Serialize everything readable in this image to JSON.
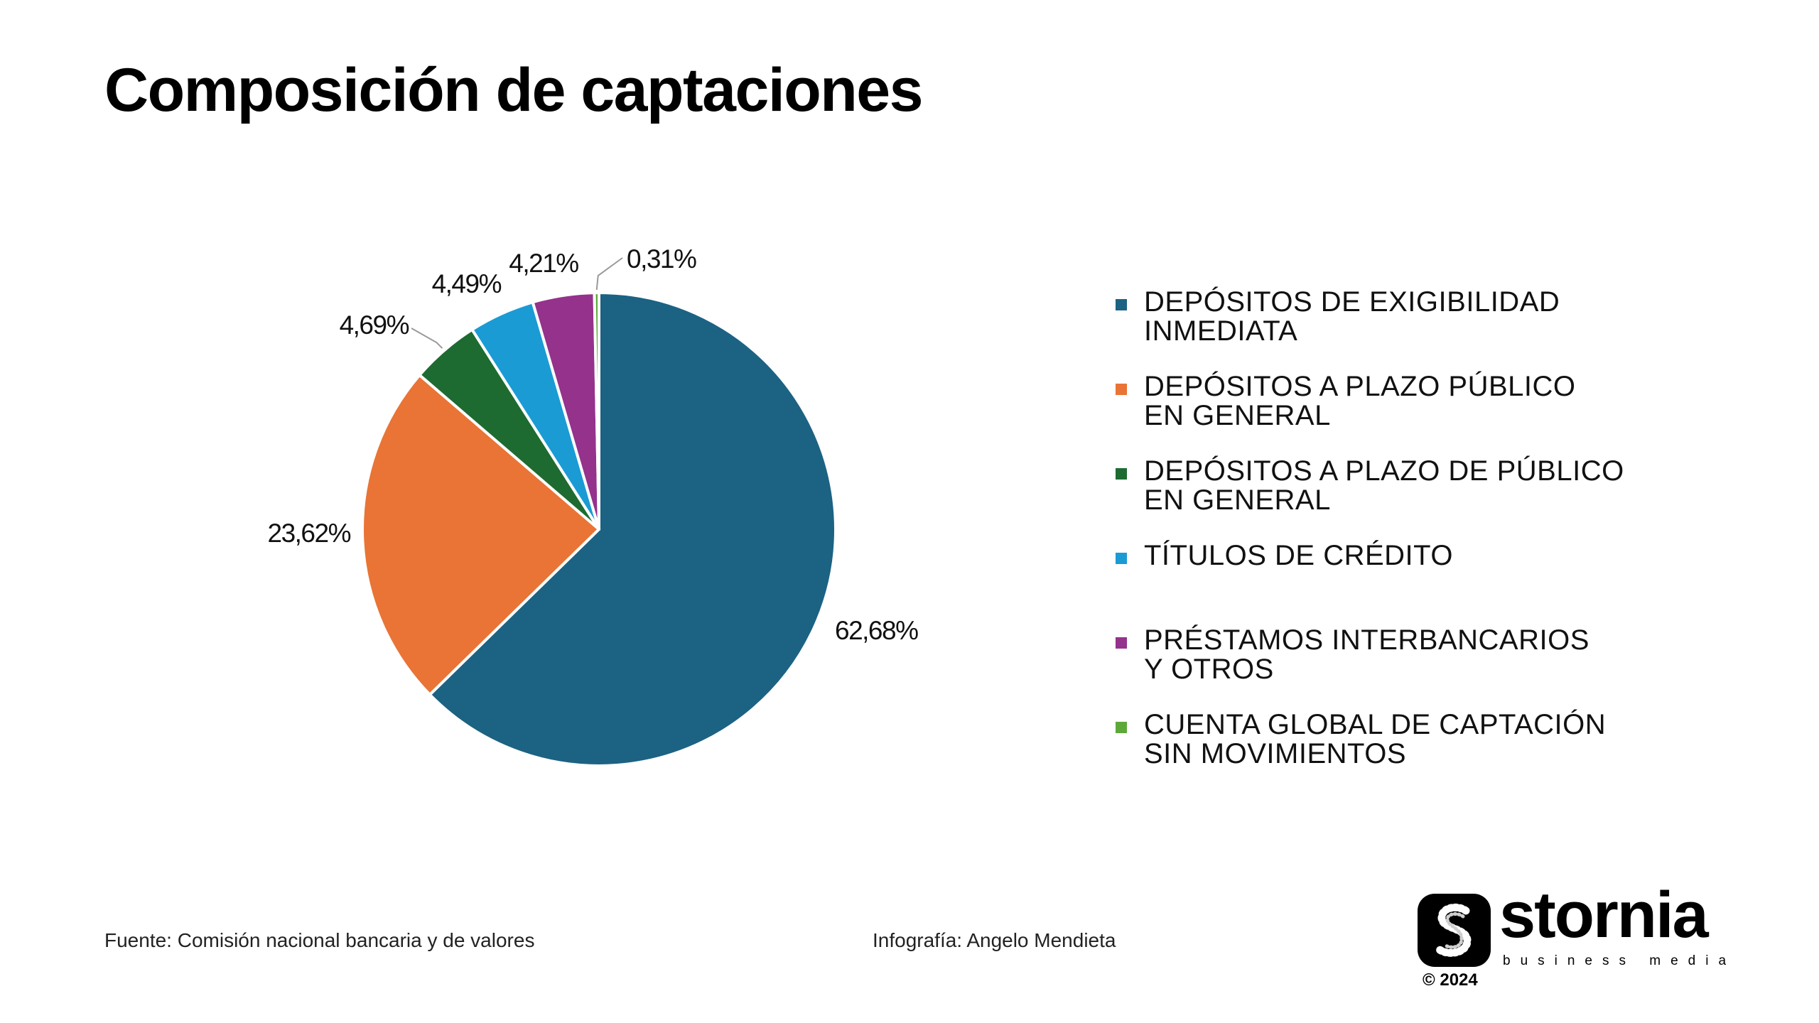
{
  "title": "Composición de captaciones",
  "chart_data": {
    "type": "pie",
    "title": "Composición de captaciones",
    "categories": [
      "DEPÓSITOS DE EXIGIBILIDAD INMEDIATA",
      "DEPÓSITOS A PLAZO PÚBLICO EN GENERAL",
      "DEPÓSITOS A PLAZO DE PÚBLICO EN GENERAL",
      "TÍTULOS DE CRÉDITO",
      "PRÉSTAMOS INTERBANCARIOS Y OTROS",
      "CUENTA GLOBAL DE CAPTACIÓN SIN MOVIMIENTOS"
    ],
    "values": [
      62.68,
      23.62,
      4.69,
      4.49,
      4.21,
      0.31
    ],
    "value_labels": [
      "62,68%",
      "23,62%",
      "4,69%",
      "4,49%",
      "4,21%",
      "0,31%"
    ],
    "colors": [
      "#1c6283",
      "#e97435",
      "#1d6b31",
      "#1b9bd4",
      "#94328c",
      "#5ea83a"
    ],
    "legend_position": "right"
  },
  "legend": [
    {
      "label": "DEPÓSITOS DE EXIGIBILIDAD\nINMEDIATA",
      "color": "#1c6283"
    },
    {
      "label": "DEPÓSITOS A PLAZO PÚBLICO\nEN GENERAL",
      "color": "#e97435"
    },
    {
      "label": "DEPÓSITOS A PLAZO DE PÚBLICO\nEN GENERAL",
      "color": "#1d6b31"
    },
    {
      "label": "TÍTULOS DE CRÉDITO",
      "color": "#1b9bd4"
    },
    {
      "label": "PRÉSTAMOS INTERBANCARIOS\nY OTROS",
      "color": "#94328c"
    },
    {
      "label": "CUENTA GLOBAL DE CAPTACIÓN\nSIN MOVIMIENTOS",
      "color": "#5ea83a"
    }
  ],
  "footer": {
    "source": "Fuente: Comisión nacional bancaria y de valores",
    "credit": "Infografía: Angelo Mendieta"
  },
  "brand": {
    "name": "stornia",
    "tagline": "business media",
    "copyright": "© 2024",
    "logo_icon": "stornia-s-logo-icon"
  }
}
